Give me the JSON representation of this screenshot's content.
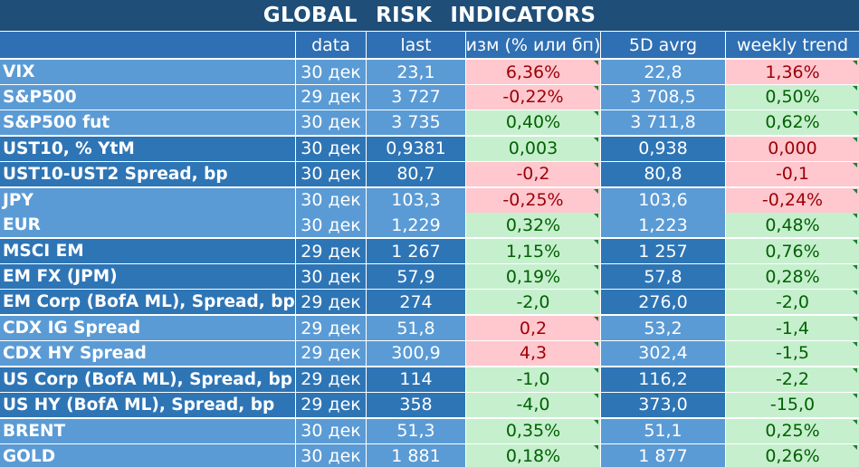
{
  "title": "GLOBAL   RISK   INDICATORS",
  "columns": [
    "",
    "data",
    "last",
    "изм (% или бп)",
    "5D avrg",
    "weekly trend"
  ],
  "colors": {
    "title_bg": "#1f4e79",
    "header_bg": "#2f6fb3",
    "group_light": "#5b9bd5",
    "group_dark": "#2e75b6",
    "positive_bg": "#c6efce",
    "positive_text": "#006100",
    "negative_bg": "#ffc7ce",
    "negative_text": "#9c0006"
  },
  "groups": [
    {
      "shade": "light",
      "rows": [
        {
          "name": "VIX",
          "date": "30 дек",
          "last": "23,1",
          "change": "6,36%",
          "change_state": "neg",
          "avg5d": "22,8",
          "weekly": "1,36%",
          "weekly_state": "neg"
        },
        {
          "name": "S&P500",
          "date": "29 дек",
          "last": "3 727",
          "change": "-0,22%",
          "change_state": "neg",
          "avg5d": "3 708,5",
          "weekly": "0,50%",
          "weekly_state": "pos"
        },
        {
          "name": "S&P500 fut",
          "date": "30 дек",
          "last": "3 735",
          "change": "0,40%",
          "change_state": "pos",
          "avg5d": "3 711,8",
          "weekly": "0,62%",
          "weekly_state": "pos"
        }
      ]
    },
    {
      "shade": "dark",
      "rows": [
        {
          "name": "UST10, % YtM",
          "date": "30 дек",
          "last": "0,9381",
          "change": "0,003",
          "change_state": "pos",
          "avg5d": "0,938",
          "weekly": "0,000",
          "weekly_state": "neg"
        },
        {
          "name": "UST10-UST2 Spread, bp",
          "date": "30 дек",
          "last": "80,7",
          "change": "-0,2",
          "change_state": "neg",
          "avg5d": "80,8",
          "weekly": "-0,1",
          "weekly_state": "neg"
        }
      ]
    },
    {
      "shade": "light",
      "rows": [
        {
          "name": "JPY",
          "date": "30 дек",
          "last": "103,3",
          "change": "-0,25%",
          "change_state": "neg",
          "avg5d": "103,6",
          "weekly": "-0,24%",
          "weekly_state": "neg"
        },
        {
          "name": "EUR",
          "date": "30 дек",
          "last": "1,229",
          "change": "0,32%",
          "change_state": "pos",
          "avg5d": "1,223",
          "weekly": "0,48%",
          "weekly_state": "pos"
        }
      ]
    },
    {
      "shade": "dark",
      "rows": [
        {
          "name": "MSCI EM",
          "date": "29 дек",
          "last": "1 267",
          "change": "1,15%",
          "change_state": "pos",
          "avg5d": "1 257",
          "weekly": "0,76%",
          "weekly_state": "pos"
        },
        {
          "name": "EM FX (JPM)",
          "date": "30 дек",
          "last": "57,9",
          "change": "0,19%",
          "change_state": "pos",
          "avg5d": "57,8",
          "weekly": "0,28%",
          "weekly_state": "pos"
        },
        {
          "name": "EM Corp (BofA ML), Spread, bp",
          "date": "29 дек",
          "last": "274",
          "change": "-2,0",
          "change_state": "pos",
          "avg5d": "276,0",
          "weekly": "-2,0",
          "weekly_state": "pos"
        }
      ]
    },
    {
      "shade": "light",
      "rows": [
        {
          "name": "CDX IG Spread",
          "date": "29 дек",
          "last": "51,8",
          "change": "0,2",
          "change_state": "neg",
          "avg5d": "53,2",
          "weekly": "-1,4",
          "weekly_state": "pos"
        },
        {
          "name": "CDX HY Spread",
          "date": "29 дек",
          "last": "300,9",
          "change": "4,3",
          "change_state": "neg",
          "avg5d": "302,4",
          "weekly": "-1,5",
          "weekly_state": "pos"
        }
      ]
    },
    {
      "shade": "dark",
      "rows": [
        {
          "name": "US Corp (BofA ML), Spread, bp",
          "date": "29 дек",
          "last": "114",
          "change": "-1,0",
          "change_state": "pos",
          "avg5d": "116,2",
          "weekly": "-2,2",
          "weekly_state": "pos"
        },
        {
          "name": "US HY (BofA ML), Spread, bp",
          "date": "29 дек",
          "last": "358",
          "change": "-4,0",
          "change_state": "pos",
          "avg5d": "373,0",
          "weekly": "-15,0",
          "weekly_state": "pos"
        }
      ]
    },
    {
      "shade": "light",
      "rows": [
        {
          "name": "BRENT",
          "date": "30 дек",
          "last": "51,3",
          "change": "0,35%",
          "change_state": "pos",
          "avg5d": "51,1",
          "weekly": "0,25%",
          "weekly_state": "pos"
        },
        {
          "name": "GOLD",
          "date": "30 дек",
          "last": "1 881",
          "change": "0,18%",
          "change_state": "pos",
          "avg5d": "1 877",
          "weekly": "0,26%",
          "weekly_state": "pos"
        }
      ]
    }
  ]
}
